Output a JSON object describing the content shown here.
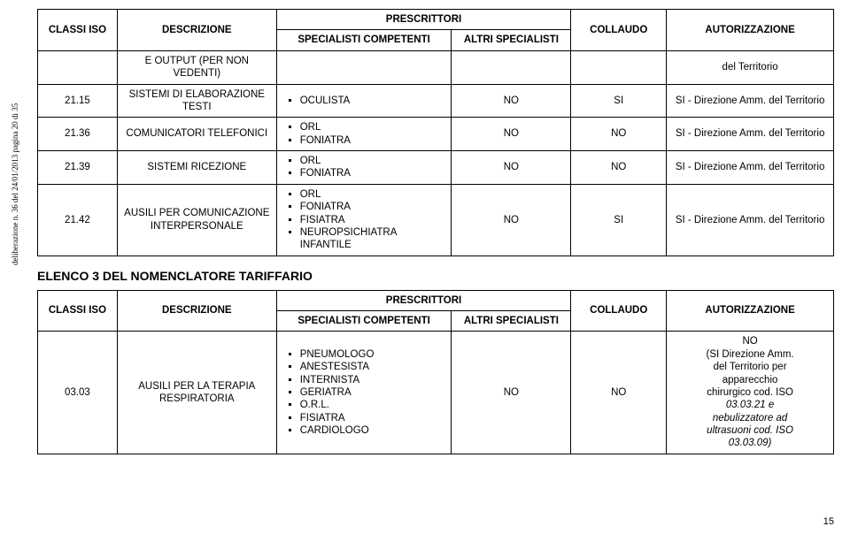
{
  "sidebar": "deliberazione n. 36 del 24/01/2013 pagina 20 di 35",
  "table1": {
    "headers": {
      "classi": "CLASSI ISO",
      "descrizione": "DESCRIZIONE",
      "prescrittori": "PRESCRITTORI",
      "specialisti_comp": "SPECIALISTI COMPETENTI",
      "altri": "ALTRI SPECIALISTI",
      "collaudo": "COLLAUDO",
      "autorizzazione": "AUTORIZZAZIONE"
    },
    "rows": [
      {
        "classi": "",
        "descrizione": "E OUTPUT (PER NON VEDENTI)",
        "specialisti": [],
        "altri": "",
        "collaudo": "",
        "autorizzazione": "del Territorio"
      },
      {
        "classi": "21.15",
        "descrizione": "SISTEMI DI ELABORAZIONE TESTI",
        "specialisti": [
          "OCULISTA"
        ],
        "altri": "NO",
        "collaudo": "SI",
        "autorizzazione": "SI - Direzione Amm. del Territorio"
      },
      {
        "classi": "21.36",
        "descrizione": "COMUNICATORI TELEFONICI",
        "specialisti": [
          "ORL",
          "FONIATRA"
        ],
        "altri": "NO",
        "collaudo": "NO",
        "autorizzazione": "SI - Direzione Amm. del Territorio"
      },
      {
        "classi": "21.39",
        "descrizione": "SISTEMI RICEZIONE",
        "specialisti": [
          "ORL",
          "FONIATRA"
        ],
        "altri": "NO",
        "collaudo": "NO",
        "autorizzazione": "SI - Direzione Amm. del Territorio"
      },
      {
        "classi": "21.42",
        "descrizione": "AUSILI PER COMUNICAZIONE INTERPERSONALE",
        "specialisti": [
          "ORL",
          "FONIATRA",
          "FISIATRA",
          "NEUROPSICHIATRA INFANTILE"
        ],
        "altri": "NO",
        "collaudo": "SI",
        "autorizzazione": "SI - Direzione Amm. del Territorio"
      }
    ]
  },
  "section_title": "ELENCO 3 DEL NOMENCLATORE TARIFFARIO",
  "table2": {
    "headers": {
      "classi": "CLASSI ISO",
      "descrizione": "DESCRIZIONE",
      "prescrittori": "PRESCRITTORI",
      "specialisti_comp": "SPECIALISTI COMPETENTI",
      "altri": "ALTRI SPECIALISTI",
      "collaudo": "COLLAUDO",
      "autorizzazione": "AUTORIZZAZIONE"
    },
    "rows": [
      {
        "classi": "03.03",
        "descrizione": "AUSILI PER LA TERAPIA RESPIRATORIA",
        "specialisti": [
          "PNEUMOLOGO",
          "ANESTESISTA",
          "INTERNISTA",
          "GERIATRA",
          "O.R.L.",
          "FISIATRA",
          "CARDIOLOGO"
        ],
        "altri": "NO",
        "collaudo": "NO",
        "autorizzazione_lines": [
          {
            "text": "NO",
            "italic": false
          },
          {
            "text": "(SI Direzione Amm.",
            "italic": false
          },
          {
            "text": "del Territorio per",
            "italic": false
          },
          {
            "text": "apparecchio",
            "italic": false
          },
          {
            "text": "chirurgico cod. ISO",
            "italic": false
          },
          {
            "text": "03.03.21 e",
            "italic": true
          },
          {
            "text": "nebulizzatore ad",
            "italic": true
          },
          {
            "text": "ultrasuoni cod. ISO",
            "italic": true
          },
          {
            "text": "03.03.09)",
            "italic": true
          }
        ]
      }
    ]
  },
  "page_number": "15"
}
